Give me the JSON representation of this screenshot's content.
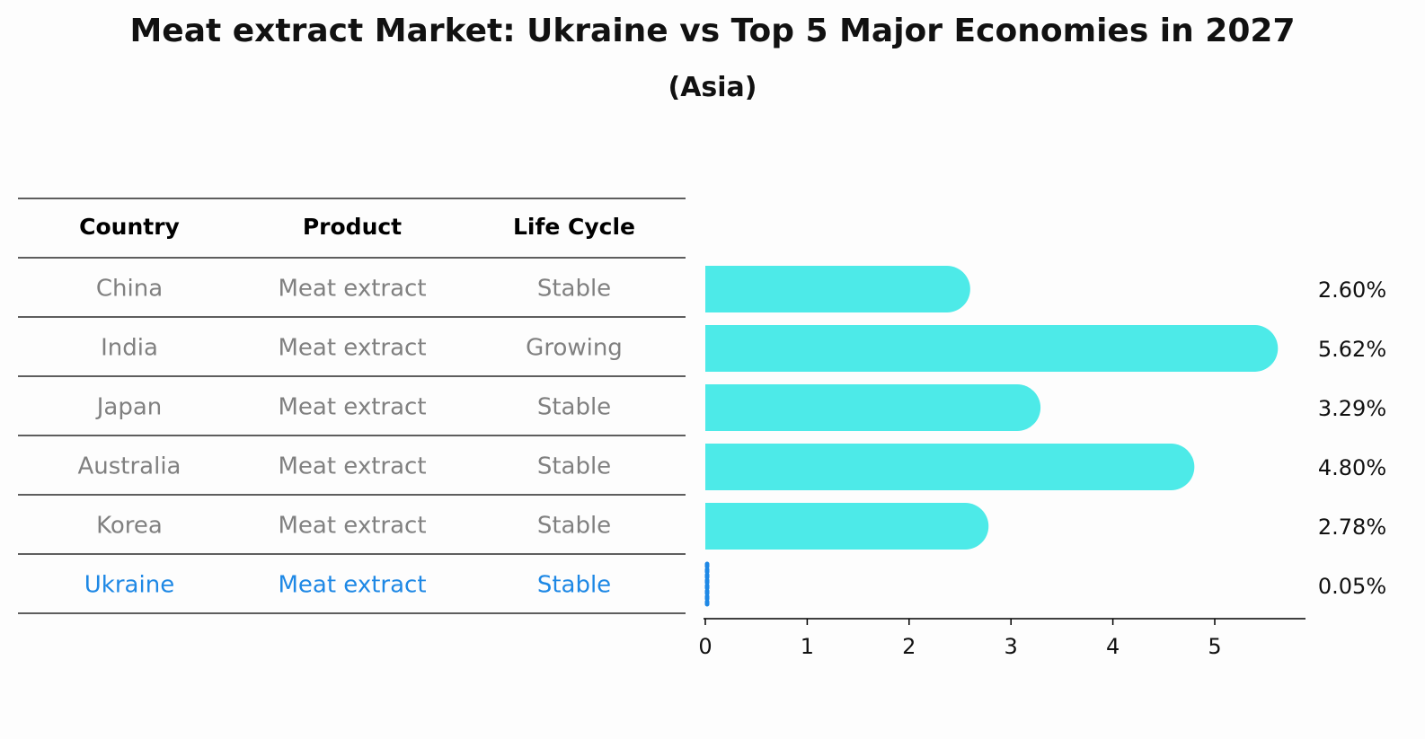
{
  "title": "Meat extract Market: Ukraine vs Top 5 Major Economies in 2027",
  "subtitle": "(Asia)",
  "colors": {
    "bar": "#4deae8",
    "highlight": "#1e88e5",
    "muted": "#808080",
    "axis": "#000000"
  },
  "table": {
    "headers": [
      "Country",
      "Product",
      "Life Cycle"
    ],
    "rows": [
      {
        "country": "China",
        "product": "Meat extract",
        "life_cycle": "Stable",
        "highlight": false
      },
      {
        "country": "India",
        "product": "Meat extract",
        "life_cycle": "Growing",
        "highlight": false
      },
      {
        "country": "Japan",
        "product": "Meat extract",
        "life_cycle": "Stable",
        "highlight": false
      },
      {
        "country": "Australia",
        "product": "Meat extract",
        "life_cycle": "Stable",
        "highlight": false
      },
      {
        "country": "Korea",
        "product": "Meat extract",
        "life_cycle": "Stable",
        "highlight": false
      },
      {
        "country": "Ukraine",
        "product": "Meat extract",
        "life_cycle": "Stable",
        "highlight": true
      }
    ]
  },
  "chart_data": {
    "type": "bar",
    "orientation": "horizontal",
    "categories": [
      "China",
      "India",
      "Japan",
      "Australia",
      "Korea",
      "Ukraine"
    ],
    "values": [
      2.6,
      5.62,
      3.29,
      4.8,
      2.78,
      0.05
    ],
    "value_labels": [
      "2.60%",
      "5.62%",
      "3.29%",
      "4.80%",
      "2.78%",
      "0.05%"
    ],
    "xticks": [
      0,
      1,
      2,
      3,
      4,
      5
    ],
    "xlim": [
      0,
      5.9
    ],
    "grid": false
  }
}
